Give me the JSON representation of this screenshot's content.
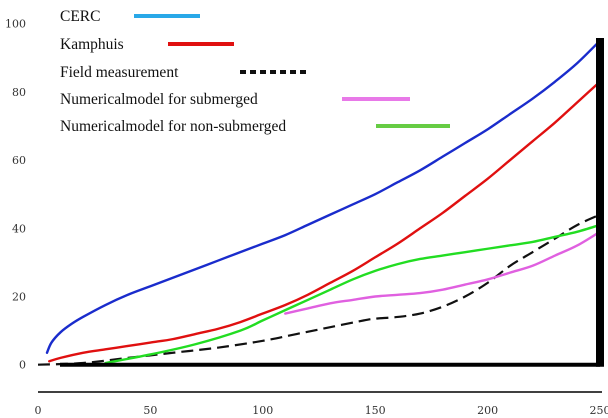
{
  "chart_data": {
    "type": "line",
    "title": "",
    "xlabel": "",
    "ylabel": "",
    "xlim": [
      0,
      250
    ],
    "ylim": [
      -8,
      104
    ],
    "x_ticks": [
      0,
      50,
      100,
      150,
      200,
      250
    ],
    "x_tick_labels": [
      "0",
      "50",
      "100",
      "150",
      "200",
      "250"
    ],
    "y_ticks": [
      0,
      20,
      40,
      60,
      80,
      100
    ],
    "y_tick_labels": [
      "0",
      "20",
      "40",
      "60",
      "80",
      "100"
    ],
    "grid": false,
    "legend_position": "top-left",
    "series": [
      {
        "name": "CERC",
        "color": "#1a2ccc",
        "legend_color": "#29a8e8",
        "dash": "solid",
        "x": [
          4,
          6,
          10,
          15,
          20,
          30,
          40,
          50,
          60,
          70,
          80,
          90,
          100,
          110,
          120,
          130,
          140,
          150,
          160,
          170,
          180,
          190,
          200,
          210,
          220,
          230,
          240,
          250
        ],
        "y": [
          3.5,
          6.5,
          9.5,
          12,
          14,
          17.5,
          20.5,
          23,
          25.5,
          28,
          30.5,
          33,
          35.5,
          38,
          41,
          44,
          47,
          50,
          53.5,
          57,
          61,
          65,
          69,
          73.5,
          78,
          83,
          88.5,
          95
        ]
      },
      {
        "name": "Kamphuis",
        "color": "#e01010",
        "legend_color": "#e01010",
        "dash": "solid",
        "x": [
          5,
          10,
          20,
          30,
          40,
          50,
          60,
          70,
          80,
          90,
          100,
          110,
          120,
          130,
          140,
          150,
          160,
          170,
          180,
          190,
          200,
          210,
          220,
          230,
          240,
          250
        ],
        "y": [
          1,
          2,
          3.5,
          4.5,
          5.5,
          6.5,
          7.5,
          9,
          10.5,
          12.5,
          15,
          17.5,
          20.5,
          24,
          27.5,
          31.5,
          35.5,
          40,
          44.5,
          49.5,
          54.5,
          60,
          65.5,
          71,
          77,
          83
        ]
      },
      {
        "name": "Field measurement",
        "color": "#111111",
        "legend_color": "#111111",
        "dash": "dashed",
        "x": [
          0,
          20,
          40,
          60,
          80,
          100,
          115,
          130,
          145,
          150,
          160,
          170,
          180,
          190,
          200,
          210,
          220,
          230,
          240,
          250
        ],
        "y": [
          0,
          0.5,
          2,
          3.5,
          5,
          7,
          9,
          11,
          13,
          13.5,
          14,
          15,
          17,
          20,
          24,
          29,
          33,
          37,
          41,
          44
        ]
      },
      {
        "name": "Numericalmodel for submerged",
        "color": "#e060e0",
        "legend_color": "#e879e8",
        "dash": "solid",
        "x": [
          110,
          120,
          130,
          140,
          150,
          160,
          170,
          180,
          190,
          200,
          210,
          220,
          230,
          240,
          250
        ],
        "y": [
          15,
          16.5,
          18,
          19,
          20,
          20.5,
          21,
          22,
          23.5,
          25,
          27,
          29,
          32,
          35,
          39
        ]
      },
      {
        "name": "Numericalmodel for non-submerged",
        "color": "#22dd22",
        "legend_color": "#66cc44",
        "dash": "solid",
        "x": [
          30,
          50,
          70,
          90,
          100,
          110,
          120,
          130,
          140,
          150,
          160,
          170,
          180,
          190,
          200,
          210,
          220,
          230,
          240,
          250
        ],
        "y": [
          0.5,
          3,
          6,
          10,
          13,
          16,
          19,
          22,
          25,
          27.5,
          29.5,
          31,
          32,
          33,
          34,
          35,
          36,
          37.5,
          39,
          41
        ]
      }
    ]
  }
}
